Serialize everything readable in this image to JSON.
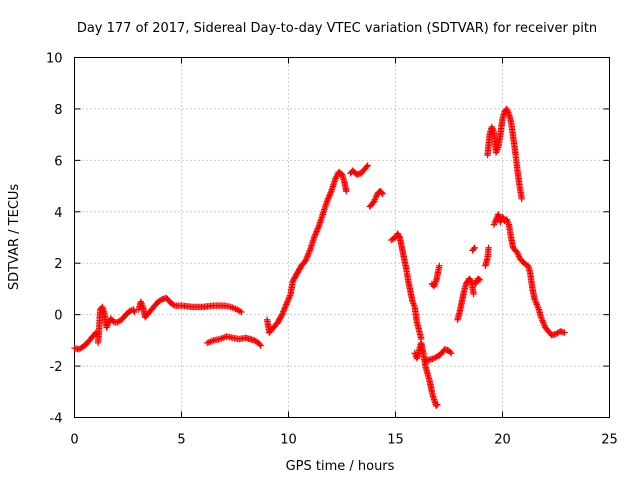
{
  "chart_data": {
    "type": "scatter",
    "title": "Day 177 of 2017, Sidereal Day-to-day VTEC variation (SDTVAR) for receiver pitn",
    "xlabel": "GPS time / hours",
    "ylabel": "SDTVAR / TECUs",
    "xlim": [
      0,
      25
    ],
    "ylim": [
      -4,
      10
    ],
    "xticks": [
      0,
      5,
      10,
      15,
      20,
      25
    ],
    "yticks": [
      -4,
      -2,
      0,
      2,
      4,
      6,
      8,
      10
    ],
    "grid": true,
    "legend": "none",
    "marker": "plus",
    "color": "#ff0000",
    "series": [
      {
        "segments": [
          [
            [
              0.0,
              -1.3
            ],
            [
              0.2,
              -1.35
            ],
            [
              0.4,
              -1.25
            ],
            [
              0.6,
              -1.1
            ],
            [
              0.8,
              -0.9
            ],
            [
              1.0,
              -0.7
            ],
            [
              1.05,
              -0.75
            ]
          ],
          [
            [
              1.1,
              -1.1
            ],
            [
              1.15,
              -0.6
            ],
            [
              1.2,
              0.2
            ],
            [
              1.3,
              0.3
            ],
            [
              1.4,
              0.05
            ],
            [
              1.5,
              -0.5
            ],
            [
              1.6,
              -0.3
            ],
            [
              1.7,
              -0.15
            ],
            [
              1.85,
              -0.3
            ],
            [
              2.0,
              -0.3
            ],
            [
              2.2,
              -0.2
            ],
            [
              2.4,
              0.0
            ],
            [
              2.6,
              0.15
            ],
            [
              2.75,
              0.2
            ],
            [
              2.8,
              0.1
            ]
          ],
          [
            [
              3.0,
              0.2
            ],
            [
              3.1,
              0.5
            ],
            [
              3.2,
              0.3
            ],
            [
              3.3,
              -0.1
            ],
            [
              3.5,
              0.1
            ],
            [
              3.7,
              0.3
            ],
            [
              3.9,
              0.5
            ],
            [
              4.1,
              0.6
            ],
            [
              4.3,
              0.65
            ],
            [
              4.5,
              0.45
            ],
            [
              4.7,
              0.35
            ],
            [
              5.0,
              0.35
            ],
            [
              5.5,
              0.3
            ],
            [
              6.0,
              0.3
            ],
            [
              6.5,
              0.35
            ],
            [
              7.0,
              0.35
            ],
            [
              7.3,
              0.3
            ],
            [
              7.6,
              0.2
            ],
            [
              7.8,
              0.1
            ]
          ],
          [
            [
              6.2,
              -1.1
            ],
            [
              6.5,
              -1.0
            ],
            [
              6.8,
              -0.95
            ],
            [
              7.1,
              -0.85
            ],
            [
              7.4,
              -0.9
            ],
            [
              7.7,
              -0.95
            ],
            [
              8.0,
              -0.9
            ],
            [
              8.2,
              -0.95
            ],
            [
              8.4,
              -1.0
            ],
            [
              8.6,
              -1.1
            ],
            [
              8.7,
              -1.2
            ]
          ],
          [
            [
              9.0,
              -0.2
            ],
            [
              9.1,
              -0.7
            ],
            [
              9.3,
              -0.5
            ],
            [
              9.5,
              -0.3
            ],
            [
              9.7,
              0.0
            ],
            [
              9.9,
              0.4
            ],
            [
              10.1,
              0.8
            ],
            [
              10.2,
              1.3
            ],
            [
              10.4,
              1.6
            ],
            [
              10.6,
              1.9
            ],
            [
              10.8,
              2.1
            ],
            [
              11.0,
              2.5
            ],
            [
              11.2,
              3.0
            ],
            [
              11.4,
              3.4
            ],
            [
              11.6,
              3.9
            ],
            [
              11.8,
              4.4
            ],
            [
              12.0,
              4.8
            ],
            [
              12.2,
              5.3
            ],
            [
              12.35,
              5.55
            ],
            [
              12.5,
              5.45
            ],
            [
              12.6,
              5.2
            ],
            [
              12.7,
              4.8
            ]
          ],
          [
            [
              12.9,
              5.5
            ],
            [
              13.0,
              5.6
            ],
            [
              13.2,
              5.45
            ],
            [
              13.4,
              5.5
            ],
            [
              13.6,
              5.7
            ],
            [
              13.7,
              5.8
            ]
          ],
          [
            [
              13.8,
              4.2
            ],
            [
              14.0,
              4.4
            ],
            [
              14.1,
              4.6
            ],
            [
              14.2,
              4.75
            ],
            [
              14.3,
              4.8
            ],
            [
              14.4,
              4.7
            ]
          ],
          [
            [
              14.8,
              2.9
            ],
            [
              15.0,
              3.0
            ],
            [
              15.1,
              3.15
            ],
            [
              15.2,
              3.0
            ],
            [
              15.3,
              2.6
            ],
            [
              15.4,
              2.2
            ],
            [
              15.5,
              1.8
            ],
            [
              15.6,
              1.3
            ],
            [
              15.7,
              0.9
            ],
            [
              15.8,
              0.5
            ],
            [
              15.9,
              0.3
            ],
            [
              16.0,
              -0.3
            ],
            [
              16.1,
              -0.6
            ],
            [
              16.2,
              -0.95
            ]
          ],
          [
            [
              15.9,
              -1.5
            ],
            [
              16.0,
              -1.7
            ],
            [
              16.1,
              -1.4
            ],
            [
              16.2,
              -1.1
            ],
            [
              16.3,
              -1.5
            ],
            [
              16.4,
              -2.0
            ],
            [
              16.5,
              -2.3
            ],
            [
              16.6,
              -2.6
            ],
            [
              16.7,
              -3.0
            ],
            [
              16.8,
              -3.3
            ],
            [
              16.9,
              -3.55
            ],
            [
              16.95,
              -3.5
            ]
          ],
          [
            [
              16.4,
              -1.8
            ],
            [
              16.6,
              -1.75
            ],
            [
              16.8,
              -1.7
            ],
            [
              17.0,
              -1.6
            ],
            [
              17.1,
              -1.55
            ],
            [
              17.3,
              -1.35
            ],
            [
              17.5,
              -1.4
            ],
            [
              17.6,
              -1.5
            ]
          ],
          [
            [
              16.7,
              1.2
            ],
            [
              16.8,
              1.1
            ],
            [
              16.9,
              1.3
            ],
            [
              17.0,
              1.7
            ],
            [
              17.05,
              1.9
            ]
          ],
          [
            [
              17.9,
              -0.2
            ],
            [
              18.0,
              0.1
            ],
            [
              18.1,
              0.5
            ],
            [
              18.2,
              0.9
            ],
            [
              18.3,
              1.2
            ],
            [
              18.45,
              1.4
            ],
            [
              18.55,
              1.3
            ],
            [
              18.65,
              0.8
            ]
          ],
          [
            [
              18.75,
              1.2
            ],
            [
              18.85,
              1.4
            ],
            [
              18.95,
              1.35
            ]
          ],
          [
            [
              18.6,
              2.5
            ],
            [
              18.7,
              2.6
            ]
          ],
          [
            [
              19.2,
              1.9
            ],
            [
              19.3,
              2.2
            ],
            [
              19.35,
              2.6
            ]
          ],
          [
            [
              19.3,
              6.2
            ],
            [
              19.4,
              7.0
            ],
            [
              19.5,
              7.3
            ],
            [
              19.6,
              7.1
            ],
            [
              19.7,
              6.3
            ],
            [
              19.8,
              6.5
            ],
            [
              19.9,
              7.0
            ],
            [
              20.0,
              7.6
            ],
            [
              20.1,
              7.9
            ],
            [
              20.2,
              8.0
            ],
            [
              20.3,
              7.8
            ],
            [
              20.4,
              7.5
            ],
            [
              20.5,
              6.9
            ],
            [
              20.6,
              6.3
            ],
            [
              20.7,
              5.6
            ],
            [
              20.8,
              5.0
            ],
            [
              20.9,
              4.5
            ]
          ],
          [
            [
              19.6,
              3.5
            ],
            [
              19.7,
              3.7
            ],
            [
              19.8,
              3.9
            ],
            [
              19.9,
              3.6
            ],
            [
              20.0,
              3.8
            ],
            [
              20.1,
              3.65
            ],
            [
              20.2,
              3.7
            ],
            [
              20.3,
              3.5
            ],
            [
              20.4,
              3.0
            ],
            [
              20.5,
              2.6
            ],
            [
              20.6,
              2.5
            ],
            [
              20.7,
              2.4
            ],
            [
              20.8,
              2.2
            ],
            [
              20.9,
              2.1
            ],
            [
              21.0,
              2.0
            ],
            [
              21.2,
              1.9
            ],
            [
              21.3,
              1.6
            ],
            [
              21.4,
              1.0
            ],
            [
              21.5,
              0.6
            ],
            [
              21.6,
              0.4
            ],
            [
              21.7,
              0.2
            ],
            [
              21.8,
              -0.1
            ],
            [
              21.9,
              -0.3
            ],
            [
              22.0,
              -0.5
            ],
            [
              22.1,
              -0.6
            ],
            [
              22.2,
              -0.7
            ],
            [
              22.3,
              -0.8
            ],
            [
              22.5,
              -0.75
            ],
            [
              22.7,
              -0.65
            ],
            [
              22.9,
              -0.7
            ]
          ]
        ]
      }
    ]
  }
}
